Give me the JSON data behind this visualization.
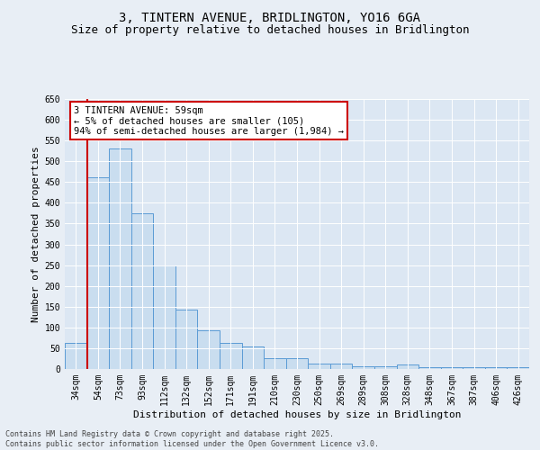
{
  "title": "3, TINTERN AVENUE, BRIDLINGTON, YO16 6GA",
  "subtitle": "Size of property relative to detached houses in Bridlington",
  "xlabel": "Distribution of detached houses by size in Bridlington",
  "ylabel": "Number of detached properties",
  "categories": [
    "34sqm",
    "54sqm",
    "73sqm",
    "93sqm",
    "112sqm",
    "132sqm",
    "152sqm",
    "171sqm",
    "191sqm",
    "210sqm",
    "230sqm",
    "250sqm",
    "269sqm",
    "289sqm",
    "308sqm",
    "328sqm",
    "348sqm",
    "367sqm",
    "387sqm",
    "406sqm",
    "426sqm"
  ],
  "values": [
    62,
    462,
    530,
    375,
    250,
    143,
    93,
    62,
    55,
    27,
    27,
    12,
    12,
    7,
    7,
    10,
    5,
    5,
    5,
    4,
    4
  ],
  "bar_color": "#c9ddef",
  "bar_edge_color": "#5b9bd5",
  "highlight_line_color": "#cc0000",
  "annotation_text": "3 TINTERN AVENUE: 59sqm\n← 5% of detached houses are smaller (105)\n94% of semi-detached houses are larger (1,984) →",
  "annotation_box_color": "#ffffff",
  "annotation_box_edge": "#cc0000",
  "ylim": [
    0,
    650
  ],
  "yticks": [
    0,
    50,
    100,
    150,
    200,
    250,
    300,
    350,
    400,
    450,
    500,
    550,
    600,
    650
  ],
  "background_color": "#e8eef5",
  "plot_bg_color": "#dce7f3",
  "footer": "Contains HM Land Registry data © Crown copyright and database right 2025.\nContains public sector information licensed under the Open Government Licence v3.0.",
  "title_fontsize": 10,
  "subtitle_fontsize": 9,
  "axis_label_fontsize": 8,
  "tick_fontsize": 7,
  "annotation_fontsize": 7.5,
  "footer_fontsize": 6
}
